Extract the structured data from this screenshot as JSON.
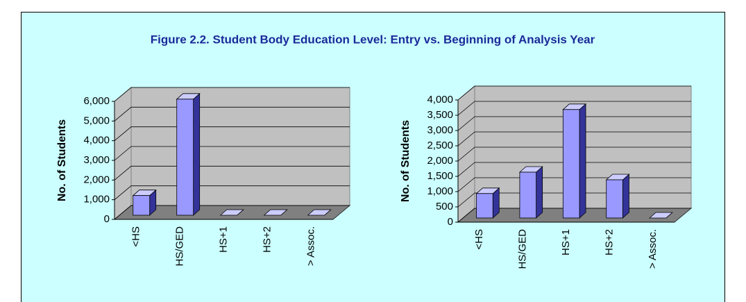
{
  "title": "Figure 2.2. Student Body Education Level: Entry vs. Beginning of Analysis Year",
  "chart_data": [
    {
      "type": "bar3d",
      "ylabel": "No. of Students",
      "categories": [
        "<HS",
        "HS/GED",
        "HS+1",
        "HS+2",
        "> Assoc."
      ],
      "values": [
        1000,
        5900,
        0,
        0,
        0
      ],
      "color": "#9999ff",
      "ylim": [
        0,
        6000
      ],
      "yticks": [
        0,
        {
          "value": 1000,
          "label": "1,000"
        },
        {
          "value": 2000,
          "label": "2,000"
        },
        {
          "value": 3000,
          "label": "3,000"
        },
        {
          "value": 4000,
          "label": "4,000"
        },
        {
          "value": 5000,
          "label": "5,000"
        },
        {
          "value": 6000,
          "label": "6,000"
        }
      ],
      "grid": true
    },
    {
      "type": "bar3d",
      "ylabel": "No. of Students",
      "categories": [
        "<HS",
        "HS/GED",
        "HS+1",
        "HS+2",
        "> Assoc."
      ],
      "values": [
        800,
        1500,
        3550,
        1250,
        0
      ],
      "color": "#9999ff",
      "ylim": [
        0,
        4000
      ],
      "yticks": [
        0,
        500,
        {
          "value": 1000,
          "label": "1,000"
        },
        {
          "value": 1500,
          "label": "1,500"
        },
        {
          "value": 2000,
          "label": "2,000"
        },
        {
          "value": 2500,
          "label": "2,500"
        },
        {
          "value": 3000,
          "label": "3,000"
        },
        {
          "value": 3500,
          "label": "3,500"
        },
        {
          "value": 4000,
          "label": "4,000"
        }
      ],
      "grid": true
    }
  ]
}
